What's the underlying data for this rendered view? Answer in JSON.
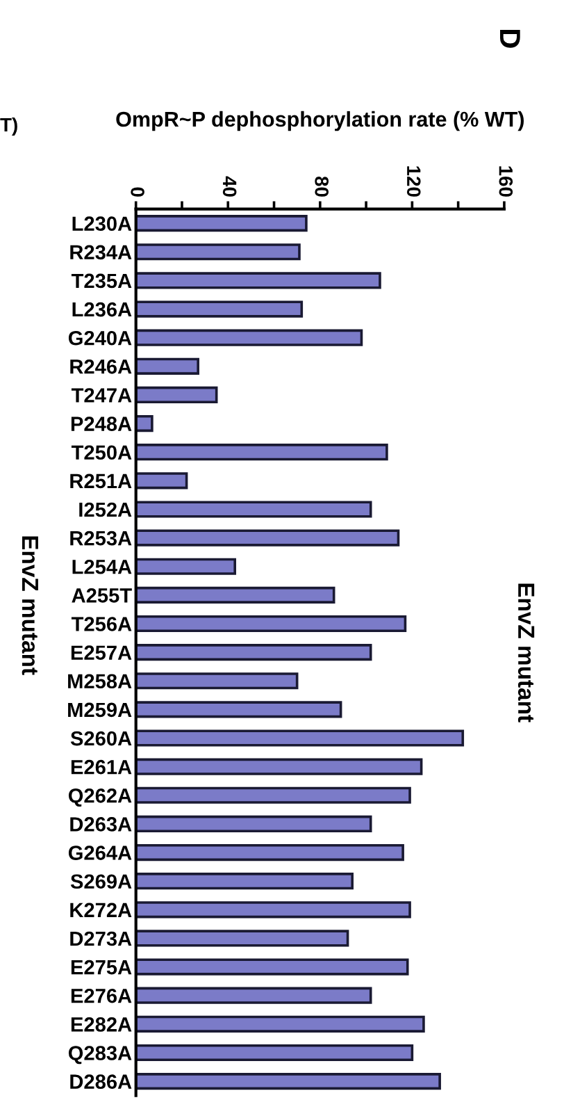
{
  "chart_data": {
    "type": "bar",
    "orientation": "horizontal",
    "xlabel": "OmpR~P dephosphorylation rate (% WT)",
    "ylabel": "EnvZ mutant",
    "categories": [
      "L230A",
      "R234A",
      "T235A",
      "L236A",
      "G240A",
      "R246A",
      "T247A",
      "P248A",
      "T250A",
      "R251A",
      "I252A",
      "R253A",
      "L254A",
      "A255T",
      "T256A",
      "E257A",
      "M258A",
      "M259A",
      "S260A",
      "E261A",
      "Q262A",
      "D263A",
      "G264A",
      "S269A",
      "K272A",
      "D273A",
      "E275A",
      "E276A",
      "E282A",
      "Q283A",
      "D286A"
    ],
    "values": [
      74,
      71,
      106,
      72,
      98,
      27,
      35,
      7,
      109,
      22,
      102,
      114,
      43,
      86,
      117,
      102,
      70,
      89,
      142,
      124,
      119,
      102,
      116,
      94,
      119,
      92,
      118,
      102,
      125,
      120,
      132
    ],
    "color": "#7b7bc8",
    "xlim": [
      0,
      160
    ],
    "xticks": [
      0,
      {
        "value": 20,
        "label": null
      },
      40,
      {
        "value": 60,
        "label": null
      },
      80,
      {
        "value": 100,
        "label": null
      },
      120,
      {
        "value": 140,
        "label": null
      },
      160
    ],
    "grid": false,
    "annotations": [
      "D",
      "EnvZ mutant",
      "T)"
    ]
  }
}
